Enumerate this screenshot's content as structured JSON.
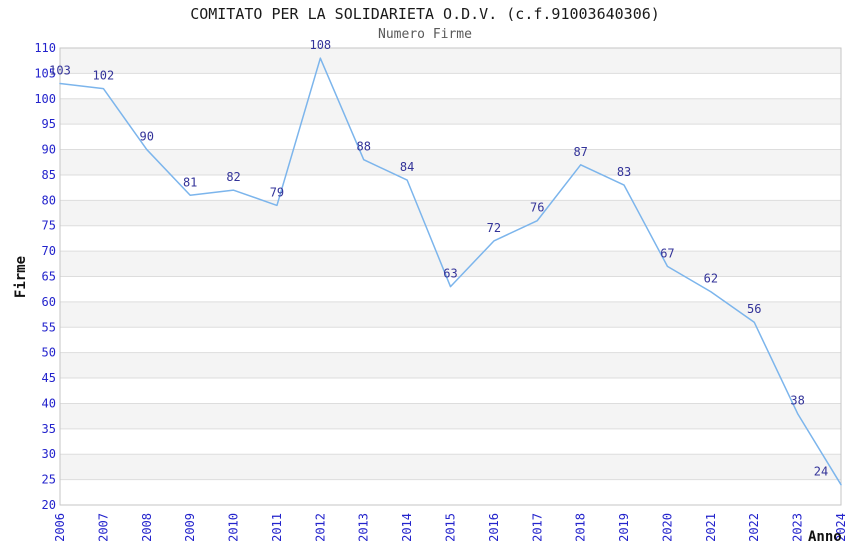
{
  "chart_data": {
    "type": "line",
    "title": "COMITATO PER LA SOLIDARIETA O.D.V. (c.f.91003640306)",
    "subtitle": "Numero Firme",
    "xlabel": "Anno",
    "ylabel": "Firme",
    "x": [
      "2006",
      "2007",
      "2008",
      "2009",
      "2010",
      "2011",
      "2012",
      "2013",
      "2014",
      "2015",
      "2016",
      "2017",
      "2018",
      "2019",
      "2020",
      "2021",
      "2022",
      "2023",
      "2024"
    ],
    "series": [
      {
        "name": "Numero Firme",
        "values": [
          103,
          102,
          90,
          81,
          82,
          79,
          108,
          88,
          84,
          63,
          72,
          76,
          87,
          83,
          67,
          62,
          56,
          38,
          24
        ]
      }
    ],
    "ylim": [
      20,
      110
    ],
    "ytick_step": 5,
    "grid": true,
    "alternating_plot_bands": true,
    "data_labels": true,
    "legend": "none",
    "markers": "none",
    "x_labels_rotated_degrees": -90,
    "colors": {
      "line": "#7cb5ec",
      "tick_label": "#2323cc",
      "data_label": "#333399",
      "band_gray": "#f4f4f4",
      "band_white": "#ffffff",
      "gridline": "#dddddd",
      "plot_border": "#c6c6c6",
      "title": "#1a1a1a",
      "subtitle": "#595959",
      "axis_title": "#111111"
    }
  }
}
